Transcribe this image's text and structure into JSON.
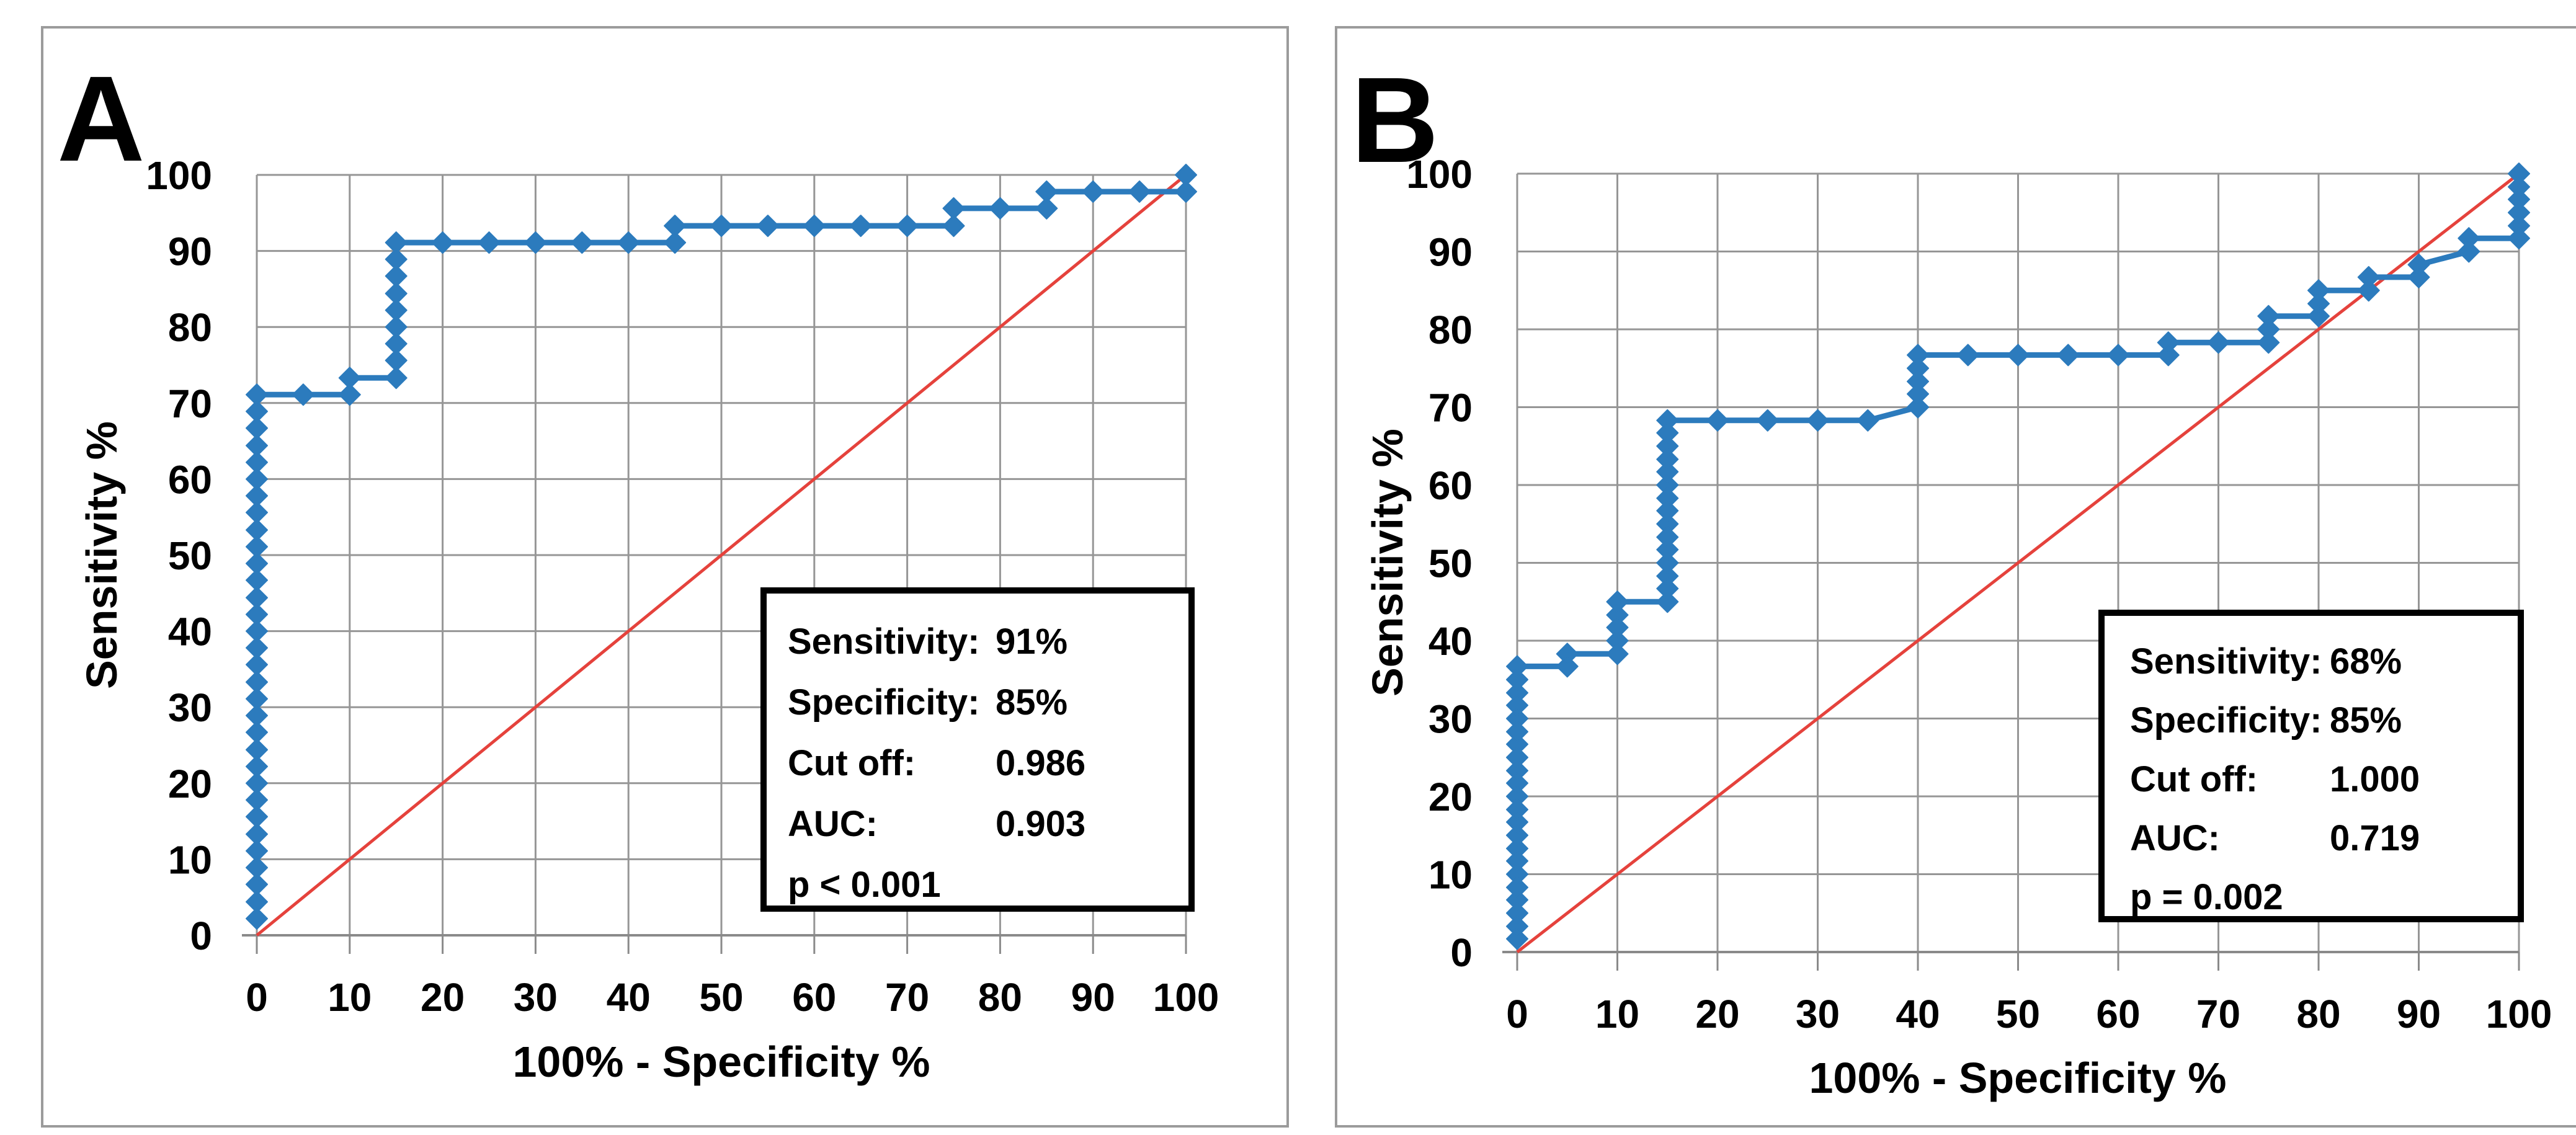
{
  "figure": {
    "panels": [
      {
        "label": "A",
        "x_axis_title": "100% - Specificity %",
        "y_axis_title": "Sensitivity %",
        "x_ticks": [
          "0",
          "10",
          "20",
          "30",
          "40",
          "50",
          "60",
          "70",
          "80",
          "90",
          "100"
        ],
        "y_ticks": [
          "0",
          "10",
          "20",
          "30",
          "40",
          "50",
          "60",
          "70",
          "80",
          "90",
          "100"
        ],
        "stats": {
          "rows": [
            {
              "label": "Sensitivity:",
              "value": "91%"
            },
            {
              "label": "Specificity:",
              "value": "85%"
            },
            {
              "label": "Cut off:",
              "value": "0.986"
            },
            {
              "label": "AUC:",
              "value": "0.903"
            },
            {
              "label": "p < 0.001",
              "value": ""
            }
          ]
        }
      },
      {
        "label": "B",
        "x_axis_title": "100% - Specificity %",
        "y_axis_title": "Sensitivity %",
        "x_ticks": [
          "0",
          "10",
          "20",
          "30",
          "40",
          "50",
          "60",
          "70",
          "80",
          "90",
          "100"
        ],
        "y_ticks": [
          "0",
          "10",
          "20",
          "30",
          "40",
          "50",
          "60",
          "70",
          "80",
          "90",
          "100"
        ],
        "stats": {
          "rows": [
            {
              "label": "Sensitivity:",
              "value": "68%"
            },
            {
              "label": "Specificity:",
              "value": "85%"
            },
            {
              "label": "Cut off:",
              "value": "1.000"
            },
            {
              "label": "AUC:",
              "value": "0.719"
            },
            {
              "label": "p = 0.002",
              "value": ""
            }
          ]
        }
      }
    ],
    "colors": {
      "roc_blue": "#2C7BBD",
      "diagonal_red": "#E5423C",
      "grid_gray": "#969696",
      "axis_gray": "#8a8a8a",
      "frame_gray": "#9b9b9b",
      "stats_border": "#000000"
    }
  },
  "chart_data": [
    {
      "type": "line",
      "panel": "A",
      "xlabel": "100% - Specificity %",
      "ylabel": "Sensitivity %",
      "xlim": [
        0,
        100
      ],
      "ylim": [
        0,
        100
      ],
      "x_tick_values": [
        0,
        10,
        20,
        30,
        40,
        50,
        60,
        70,
        80,
        90,
        100
      ],
      "y_tick_values": [
        0,
        10,
        20,
        30,
        40,
        50,
        60,
        70,
        80,
        90,
        100
      ],
      "grid": true,
      "legend": "none",
      "annotation_box": {
        "sensitivity": "91%",
        "specificity": "85%",
        "cut_off": "0.986",
        "auc": "0.903",
        "p_value": "p < 0.001"
      },
      "series": [
        {
          "name": "ROC curve",
          "color": "#2C7BBD",
          "marker": "diamond",
          "points": [
            [
              0,
              2.2
            ],
            [
              0,
              4.4
            ],
            [
              0,
              6.7
            ],
            [
              0,
              8.9
            ],
            [
              0,
              11.1
            ],
            [
              0,
              13.3
            ],
            [
              0,
              15.6
            ],
            [
              0,
              17.8
            ],
            [
              0,
              20
            ],
            [
              0,
              22.2
            ],
            [
              0,
              24.4
            ],
            [
              0,
              26.7
            ],
            [
              0,
              28.9
            ],
            [
              0,
              31.1
            ],
            [
              0,
              33.3
            ],
            [
              0,
              35.6
            ],
            [
              0,
              37.8
            ],
            [
              0,
              40
            ],
            [
              0,
              42.2
            ],
            [
              0,
              44.4
            ],
            [
              0,
              46.7
            ],
            [
              0,
              48.9
            ],
            [
              0,
              51.1
            ],
            [
              0,
              53.3
            ],
            [
              0,
              55.6
            ],
            [
              0,
              57.8
            ],
            [
              0,
              60
            ],
            [
              0,
              62.2
            ],
            [
              0,
              64.4
            ],
            [
              0,
              66.7
            ],
            [
              0,
              68.9
            ],
            [
              0,
              71.1
            ],
            [
              5,
              71.1
            ],
            [
              10,
              71.1
            ],
            [
              10,
              73.3
            ],
            [
              15,
              73.3
            ],
            [
              15,
              75.6
            ],
            [
              15,
              77.8
            ],
            [
              15,
              80
            ],
            [
              15,
              82.2
            ],
            [
              15,
              84.4
            ],
            [
              15,
              86.7
            ],
            [
              15,
              88.9
            ],
            [
              15,
              91.1
            ],
            [
              20,
              91.1
            ],
            [
              25,
              91.1
            ],
            [
              30,
              91.1
            ],
            [
              35,
              91.1
            ],
            [
              40,
              91.1
            ],
            [
              45,
              91.1
            ],
            [
              45,
              93.3
            ],
            [
              50,
              93.3
            ],
            [
              55,
              93.3
            ],
            [
              60,
              93.3
            ],
            [
              65,
              93.3
            ],
            [
              70,
              93.3
            ],
            [
              75,
              93.3
            ],
            [
              75,
              95.6
            ],
            [
              80,
              95.6
            ],
            [
              85,
              95.6
            ],
            [
              85,
              97.8
            ],
            [
              90,
              97.8
            ],
            [
              95,
              97.8
            ],
            [
              100,
              97.8
            ],
            [
              100,
              100
            ]
          ]
        },
        {
          "name": "Chance diagonal",
          "color": "#E5423C",
          "marker": "none",
          "points": [
            [
              0,
              0
            ],
            [
              100,
              100
            ]
          ]
        }
      ]
    },
    {
      "type": "line",
      "panel": "B",
      "xlabel": "100% - Specificity %",
      "ylabel": "Sensitivity %",
      "xlim": [
        0,
        100
      ],
      "ylim": [
        0,
        100
      ],
      "x_tick_values": [
        0,
        10,
        20,
        30,
        40,
        50,
        60,
        70,
        80,
        90,
        100
      ],
      "y_tick_values": [
        0,
        10,
        20,
        30,
        40,
        50,
        60,
        70,
        80,
        90,
        100
      ],
      "grid": true,
      "legend": "none",
      "annotation_box": {
        "sensitivity": "68%",
        "specificity": "85%",
        "cut_off": "1.000",
        "auc": "0.719",
        "p_value": "p = 0.002"
      },
      "series": [
        {
          "name": "ROC curve",
          "color": "#2C7BBD",
          "marker": "diamond",
          "points": [
            [
              0,
              1.7
            ],
            [
              0,
              3.3
            ],
            [
              0,
              5
            ],
            [
              0,
              6.7
            ],
            [
              0,
              8.3
            ],
            [
              0,
              10
            ],
            [
              0,
              11.7
            ],
            [
              0,
              13.3
            ],
            [
              0,
              15
            ],
            [
              0,
              16.7
            ],
            [
              0,
              18.3
            ],
            [
              0,
              20
            ],
            [
              0,
              21.7
            ],
            [
              0,
              23.3
            ],
            [
              0,
              25
            ],
            [
              0,
              26.7
            ],
            [
              0,
              28.3
            ],
            [
              0,
              30
            ],
            [
              0,
              31.7
            ],
            [
              0,
              33.3
            ],
            [
              0,
              35
            ],
            [
              0,
              36.7
            ],
            [
              5,
              36.7
            ],
            [
              5,
              38.3
            ],
            [
              10,
              38.3
            ],
            [
              10,
              40
            ],
            [
              10,
              41.7
            ],
            [
              10,
              43.3
            ],
            [
              10,
              45
            ],
            [
              15,
              45
            ],
            [
              15,
              46.7
            ],
            [
              15,
              48.3
            ],
            [
              15,
              50
            ],
            [
              15,
              51.7
            ],
            [
              15,
              53.3
            ],
            [
              15,
              55
            ],
            [
              15,
              56.7
            ],
            [
              15,
              58.3
            ],
            [
              15,
              60
            ],
            [
              15,
              61.7
            ],
            [
              15,
              63.3
            ],
            [
              15,
              65
            ],
            [
              15,
              66.7
            ],
            [
              15,
              68.3
            ],
            [
              20,
              68.3
            ],
            [
              25,
              68.3
            ],
            [
              30,
              68.3
            ],
            [
              35,
              68.3
            ],
            [
              40,
              70
            ],
            [
              40,
              71.7
            ],
            [
              40,
              73.3
            ],
            [
              40,
              75
            ],
            [
              40,
              76.7
            ],
            [
              45,
              76.7
            ],
            [
              50,
              76.7
            ],
            [
              55,
              76.7
            ],
            [
              60,
              76.7
            ],
            [
              65,
              76.7
            ],
            [
              65,
              78.3
            ],
            [
              70,
              78.3
            ],
            [
              75,
              78.3
            ],
            [
              75,
              80
            ],
            [
              75,
              81.7
            ],
            [
              80,
              81.7
            ],
            [
              80,
              83.3
            ],
            [
              80,
              85
            ],
            [
              85,
              85
            ],
            [
              85,
              86.7
            ],
            [
              90,
              86.7
            ],
            [
              90,
              88.3
            ],
            [
              95,
              90
            ],
            [
              95,
              91.7
            ],
            [
              100,
              91.7
            ],
            [
              100,
              93.3
            ],
            [
              100,
              95
            ],
            [
              100,
              96.7
            ],
            [
              100,
              98.3
            ],
            [
              100,
              100
            ]
          ]
        },
        {
          "name": "Chance diagonal",
          "color": "#E5423C",
          "marker": "none",
          "points": [
            [
              0,
              0
            ],
            [
              100,
              100
            ]
          ]
        }
      ]
    }
  ]
}
